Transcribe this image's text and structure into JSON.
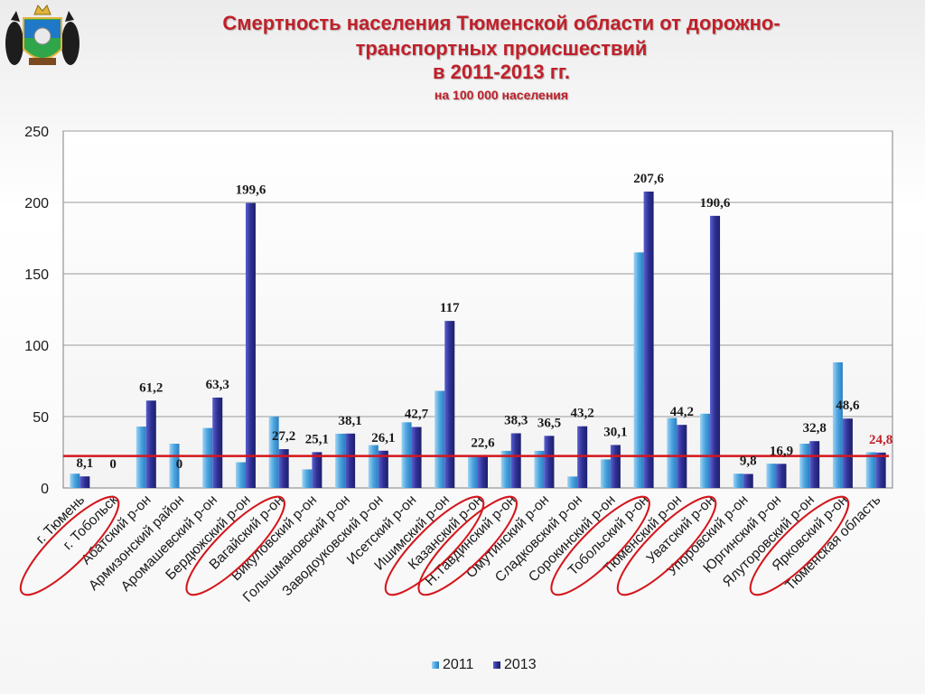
{
  "header": {
    "title_line1": "Смертность населения Тюменской области от дорожно-",
    "title_line2": "транспортных происшествий",
    "title_line3": "в  2011-2013 гг.",
    "subtitle": "на 100 000 населения"
  },
  "colors": {
    "title": "#c0202a",
    "series_2011": "#4aa3df",
    "series_2013": "#2e3192",
    "reference_line": "#d4161c",
    "highlight_ellipse": "#d4161c",
    "label_normal": "#1a1a1a",
    "label_highlight": "#c0202a"
  },
  "chart_data": {
    "type": "bar",
    "ylim": [
      0,
      250
    ],
    "yticks": [
      0,
      50,
      100,
      150,
      200,
      250
    ],
    "grid": true,
    "legend_position": "bottom",
    "categories": [
      "г. Тюмень",
      "г. Тобольск",
      "Абатский р-он",
      "Армизонский район",
      "Аромашевский р-он",
      "Бердюжский р-он",
      "Вагайский р-он",
      "Викуловский р-он",
      "Голышмановский р-он",
      "Заводоуковский р-он",
      "Исетский р-он",
      "Ишимский р-он",
      "Казанский р-он",
      "Н.Тавдинский р-он",
      "Омутинский р-он",
      "Сладковский р-он",
      "Сорокинский р-он",
      "Тобольский р-он",
      "Тюменский р-он",
      "Уватский р-он",
      "Упоровский р-он",
      "Юргинский р-он",
      "Ялуторовский р-он",
      "Ярковский р-он",
      "Тюменская область"
    ],
    "series": [
      {
        "name": "2011",
        "values": [
          10,
          0,
          43,
          31,
          42,
          18,
          50,
          13,
          38,
          30,
          46,
          68,
          22,
          26,
          26,
          8,
          20,
          165,
          49,
          52,
          10,
          17,
          31,
          88,
          25
        ]
      },
      {
        "name": "2013",
        "values": [
          8.1,
          0,
          61.2,
          0,
          63.3,
          199.6,
          27.2,
          25.1,
          38.1,
          26.1,
          42.7,
          117,
          22.6,
          38.3,
          36.5,
          43.2,
          30.1,
          207.6,
          44.2,
          190.6,
          9.8,
          16.9,
          32.8,
          48.6,
          24.8
        ]
      }
    ],
    "data_labels": [
      "8,1",
      "0",
      "61,2",
      "0",
      "63,3",
      "199,6",
      "27,2",
      "25,1",
      "38,1",
      "26,1",
      "42,7",
      "117",
      "22,6",
      "38,3",
      "36,5",
      "43,2",
      "30,1",
      "207,6",
      "44,2",
      "190,6",
      "9,8",
      "16,9",
      "32,8",
      "48,6",
      "24,8"
    ],
    "reference_line_value": 22.4,
    "highlighted_categories": [
      "г. Тобольск",
      "Вагайский р-он",
      "Казанский р-он",
      "Н.Тавдинский р-он",
      "Тобольский р-он",
      "Уватский р-он",
      "Ярковский р-он"
    ]
  }
}
